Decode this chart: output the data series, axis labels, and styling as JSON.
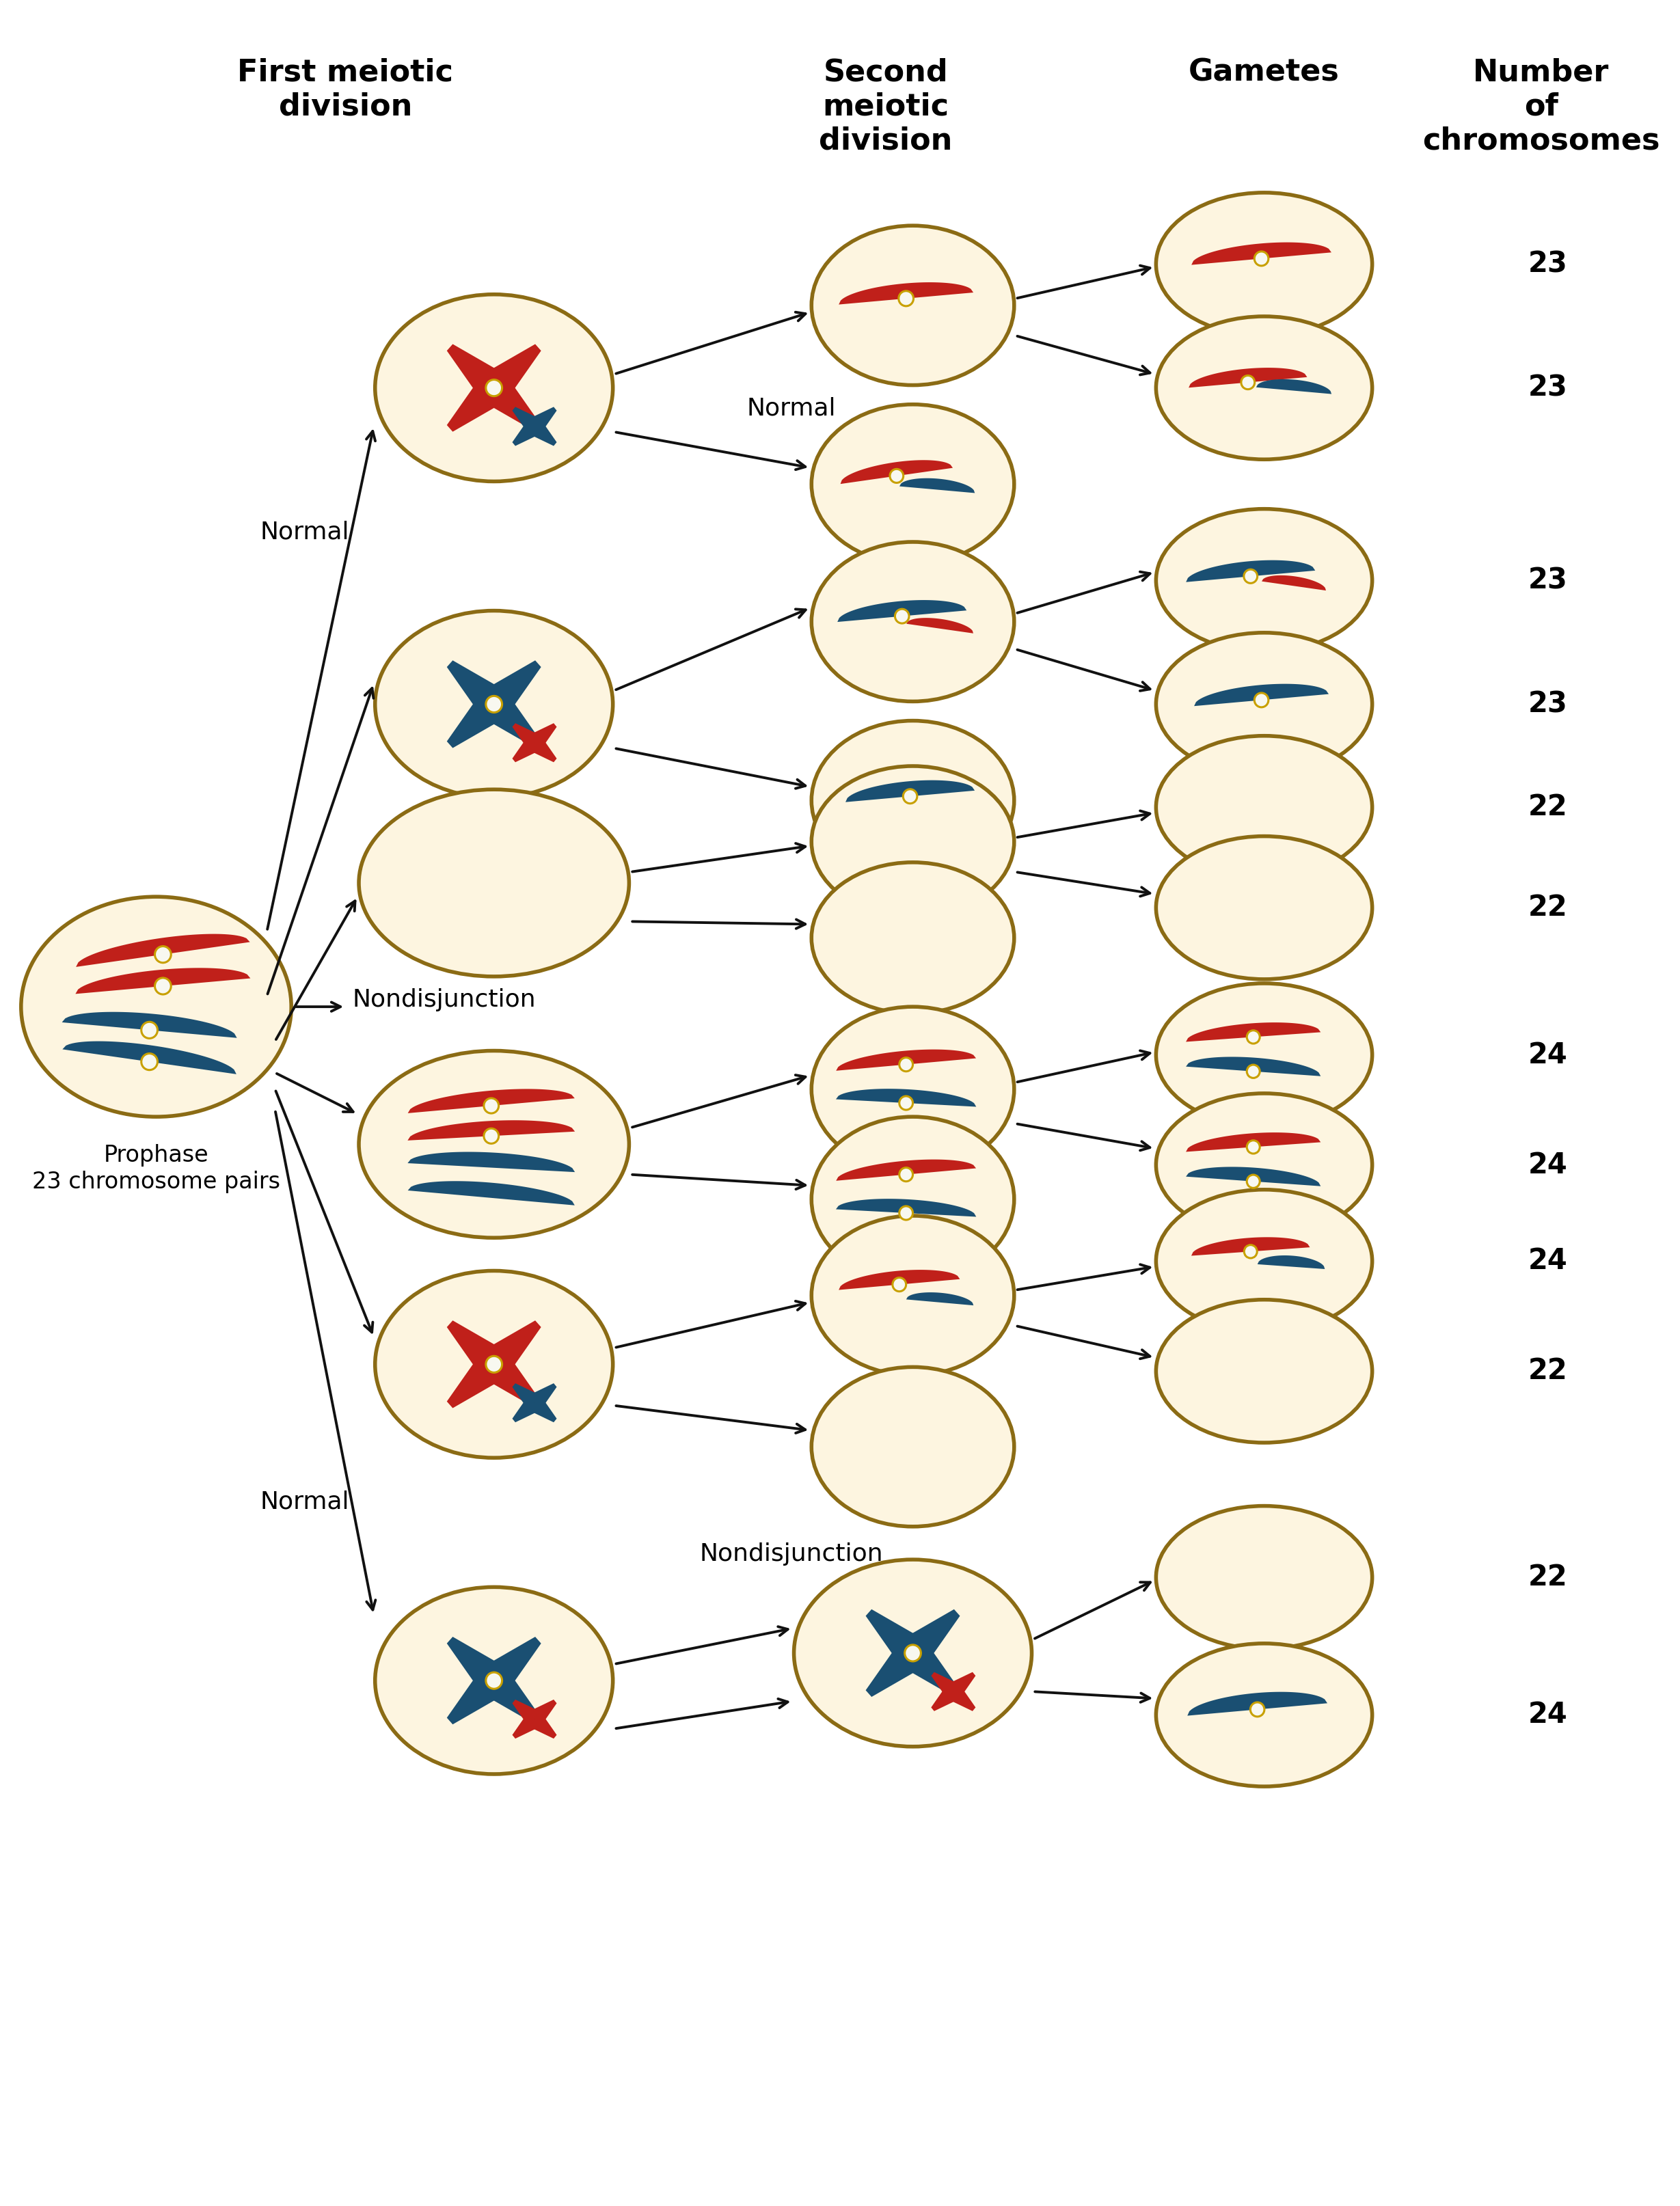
{
  "bg_color": "#ffffff",
  "cell_fill": "#fdf5e0",
  "cell_edge": "#8B6B14",
  "cell_edge_width": 4.0,
  "red_color": "#c0201a",
  "blue_color": "#1a4f72",
  "centromere_fill": "#f8f8f0",
  "centromere_edge": "#c8a000",
  "arrow_color": "#111111",
  "text_color": "#000000",
  "font_size_header": 32,
  "font_size_label": 26,
  "font_size_number": 30,
  "font_size_prophase": 24,
  "header_first_meiotic": "First meiotic\ndivision",
  "header_second_meiotic": "Second\nmeiotic\ndivision",
  "header_gametes": "Gametes",
  "header_number": "Number\nof\nchromosomes",
  "label_normal_top": "Normal",
  "label_normal_bot": "Normal",
  "label_nondisjunction1": "Nondisjunction",
  "label_nondisjunction2": "Nondisjunction",
  "prophase_label": "Prophase\n23 chromosome pairs",
  "numbers": [
    "23",
    "23",
    "23",
    "23",
    "22",
    "22",
    "24",
    "24",
    "24",
    "22",
    "22",
    "24"
  ],
  "xlim": [
    0,
    12
  ],
  "ylim": [
    0,
    16
  ]
}
